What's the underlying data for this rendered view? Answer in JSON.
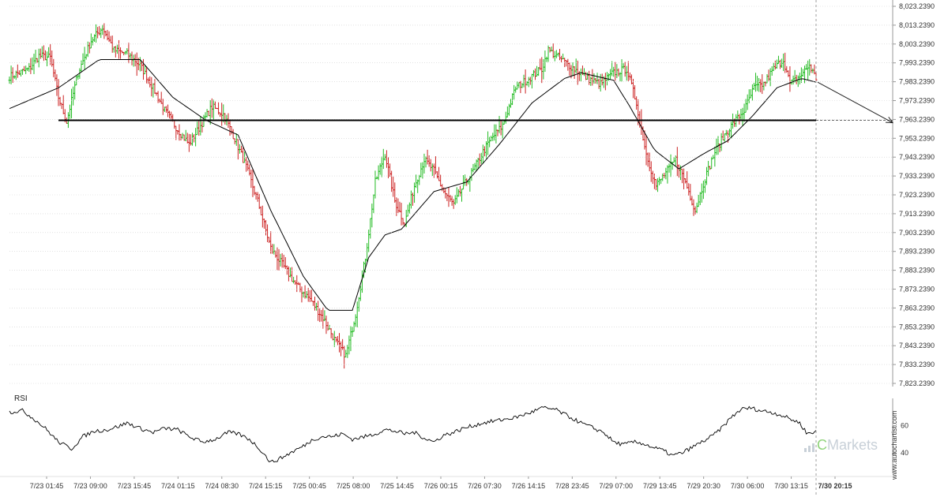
{
  "chart_data": [
    {
      "type": "candlestick",
      "title": "",
      "y_axis_labels": [
        "8,023.2390",
        "8,013.2390",
        "8,003.2390",
        "7,993.2390",
        "7,983.2390",
        "7,973.2390",
        "7,963.2390",
        "7,953.2390",
        "7,943.2390",
        "7,933.2390",
        "7,923.2390",
        "7,913.2390",
        "7,903.2390",
        "7,893.2390",
        "7,883.2390",
        "7,873.2390",
        "7,863.2390",
        "7,853.2390",
        "7,843.2390",
        "7,833.2390",
        "7,823.2390"
      ],
      "ylim": [
        7823.239,
        8023.239
      ],
      "x_axis_labels": [
        "7/23 01:45",
        "7/23 09:00",
        "7/23 15:45",
        "7/24 01:15",
        "7/24 08:30",
        "7/24 15:15",
        "7/25 00:45",
        "7/25 08:00",
        "7/25 14:45",
        "7/26 00:15",
        "7/26 07:30",
        "7/26 14:15",
        "7/28 23:45",
        "7/29 07:00",
        "7/29 13:45",
        "7/29 20:30",
        "7/30 06:00",
        "7/30 13:15",
        "7/30 20:15"
      ],
      "current_time_label": "7/30 20:15",
      "support_level": 7962.8,
      "close_path_keypoints": [
        [
          0,
          7986
        ],
        [
          6,
          7988
        ],
        [
          12,
          7990
        ],
        [
          18,
          7997
        ],
        [
          25,
          7996
        ],
        [
          30,
          7975
        ],
        [
          35,
          7962
        ],
        [
          42,
          7988
        ],
        [
          50,
          8005
        ],
        [
          57,
          8012
        ],
        [
          64,
          8000
        ],
        [
          72,
          7998
        ],
        [
          80,
          7992
        ],
        [
          88,
          7980
        ],
        [
          95,
          7968
        ],
        [
          103,
          7958
        ],
        [
          110,
          7950
        ],
        [
          117,
          7960
        ],
        [
          124,
          7970
        ],
        [
          131,
          7966
        ],
        [
          138,
          7953
        ],
        [
          145,
          7938
        ],
        [
          152,
          7920
        ],
        [
          160,
          7895
        ],
        [
          168,
          7885
        ],
        [
          176,
          7875
        ],
        [
          184,
          7868
        ],
        [
          192,
          7858
        ],
        [
          200,
          7845
        ],
        [
          206,
          7838
        ],
        [
          212,
          7860
        ],
        [
          218,
          7890
        ],
        [
          224,
          7930
        ],
        [
          230,
          7945
        ],
        [
          236,
          7920
        ],
        [
          242,
          7908
        ],
        [
          248,
          7928
        ],
        [
          254,
          7942
        ],
        [
          260,
          7936
        ],
        [
          266,
          7925
        ],
        [
          272,
          7918
        ],
        [
          278,
          7928
        ],
        [
          284,
          7936
        ],
        [
          290,
          7946
        ],
        [
          296,
          7954
        ],
        [
          302,
          7960
        ],
        [
          310,
          7980
        ],
        [
          318,
          7985
        ],
        [
          326,
          7990
        ],
        [
          330,
          8000
        ],
        [
          338,
          7995
        ],
        [
          346,
          7990
        ],
        [
          354,
          7985
        ],
        [
          362,
          7982
        ],
        [
          370,
          7988
        ],
        [
          378,
          7990
        ],
        [
          384,
          7972
        ],
        [
          390,
          7945
        ],
        [
          396,
          7928
        ],
        [
          402,
          7935
        ],
        [
          408,
          7942
        ],
        [
          414,
          7930
        ],
        [
          420,
          7915
        ],
        [
          426,
          7932
        ],
        [
          432,
          7946
        ],
        [
          438,
          7955
        ],
        [
          444,
          7962
        ],
        [
          450,
          7968
        ],
        [
          456,
          7980
        ],
        [
          462,
          7982
        ],
        [
          468,
          7990
        ],
        [
          474,
          7995
        ],
        [
          478,
          7982
        ],
        [
          484,
          7986
        ],
        [
          490,
          7992
        ],
        [
          494,
          7985
        ]
      ],
      "moving_average_keypoints": [
        [
          0,
          7969
        ],
        [
          30,
          7980
        ],
        [
          55,
          7995
        ],
        [
          80,
          7995
        ],
        [
          100,
          7975
        ],
        [
          120,
          7963
        ],
        [
          140,
          7955
        ],
        [
          160,
          7915
        ],
        [
          180,
          7880
        ],
        [
          195,
          7862
        ],
        [
          210,
          7862
        ],
        [
          220,
          7890
        ],
        [
          230,
          7902
        ],
        [
          240,
          7905
        ],
        [
          260,
          7925
        ],
        [
          280,
          7930
        ],
        [
          300,
          7950
        ],
        [
          320,
          7972
        ],
        [
          340,
          7985
        ],
        [
          350,
          7988
        ],
        [
          370,
          7984
        ],
        [
          380,
          7970
        ],
        [
          395,
          7947
        ],
        [
          410,
          7937
        ],
        [
          425,
          7945
        ],
        [
          440,
          7952
        ],
        [
          455,
          7965
        ],
        [
          470,
          7980
        ],
        [
          485,
          7985
        ],
        [
          494,
          7983
        ]
      ],
      "forecast_target": 7961.5
    },
    {
      "type": "line",
      "title": "",
      "ylabel": "RSI",
      "y_tick_labels": [
        "60",
        "40"
      ],
      "ylim": [
        25,
        80
      ],
      "keypoints": [
        [
          0,
          70
        ],
        [
          8,
          71
        ],
        [
          15,
          65
        ],
        [
          22,
          58
        ],
        [
          30,
          48
        ],
        [
          38,
          43
        ],
        [
          45,
          52
        ],
        [
          52,
          56
        ],
        [
          60,
          57
        ],
        [
          68,
          60
        ],
        [
          72,
          62
        ],
        [
          80,
          58
        ],
        [
          88,
          55
        ],
        [
          95,
          58
        ],
        [
          103,
          57
        ],
        [
          110,
          52
        ],
        [
          118,
          48
        ],
        [
          126,
          50
        ],
        [
          134,
          55
        ],
        [
          140,
          54
        ],
        [
          147,
          50
        ],
        [
          154,
          42
        ],
        [
          160,
          33
        ],
        [
          166,
          36
        ],
        [
          172,
          40
        ],
        [
          180,
          45
        ],
        [
          186,
          50
        ],
        [
          192,
          52
        ],
        [
          198,
          52
        ],
        [
          204,
          54
        ],
        [
          210,
          50
        ],
        [
          218,
          52
        ],
        [
          224,
          54
        ],
        [
          230,
          57
        ],
        [
          236,
          56
        ],
        [
          242,
          54
        ],
        [
          248,
          55
        ],
        [
          254,
          51
        ],
        [
          260,
          48
        ],
        [
          266,
          53
        ],
        [
          272,
          55
        ],
        [
          278,
          58
        ],
        [
          284,
          60
        ],
        [
          290,
          62
        ],
        [
          300,
          64
        ],
        [
          310,
          66
        ],
        [
          320,
          70
        ],
        [
          326,
          73
        ],
        [
          334,
          72
        ],
        [
          342,
          67
        ],
        [
          350,
          62
        ],
        [
          358,
          58
        ],
        [
          364,
          55
        ],
        [
          370,
          48
        ],
        [
          376,
          46
        ],
        [
          382,
          48
        ],
        [
          388,
          47
        ],
        [
          394,
          44
        ],
        [
          400,
          42
        ],
        [
          406,
          38
        ],
        [
          412,
          40
        ],
        [
          418,
          44
        ],
        [
          424,
          48
        ],
        [
          430,
          52
        ],
        [
          436,
          58
        ],
        [
          442,
          66
        ],
        [
          448,
          72
        ],
        [
          454,
          73
        ],
        [
          460,
          71
        ],
        [
          466,
          70
        ],
        [
          472,
          68
        ],
        [
          478,
          65
        ],
        [
          484,
          62
        ],
        [
          488,
          55
        ],
        [
          492,
          54
        ],
        [
          494,
          57
        ]
      ]
    }
  ],
  "watermark": "www.autochartist.com",
  "brand": {
    "logo_label": "Markets",
    "logo_accent": "C"
  },
  "colors": {
    "up_bar": "#22bb22",
    "down_bar": "#cc2222",
    "support_line": "#000000",
    "moving_average": "#000000",
    "grid": "#cfcfcf",
    "axis": "#999999"
  }
}
